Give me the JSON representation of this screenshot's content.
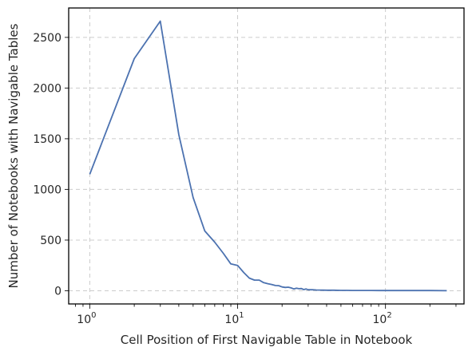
{
  "chart_data": {
    "type": "line",
    "xlabel": "Cell Position of First Navigable Table in Notebook",
    "ylabel": "Number of Notebooks with Navigable Tables",
    "xscale": "log",
    "xlim": [
      0.72,
      340
    ],
    "ylim": [
      -130,
      2790
    ],
    "grid": true,
    "line_color": "#4c72b0",
    "xticks": [
      {
        "value": 1,
        "base": "10",
        "exp": "0"
      },
      {
        "value": 10,
        "base": "10",
        "exp": "1"
      },
      {
        "value": 100,
        "base": "10",
        "exp": "2"
      }
    ],
    "yticks": [
      0,
      500,
      1000,
      1500,
      2000,
      2500
    ],
    "series": [
      {
        "x": [
          1,
          2,
          3,
          4,
          5,
          6,
          7,
          8,
          9,
          10,
          11,
          12,
          13,
          14,
          15,
          16,
          17,
          18,
          19,
          20,
          21,
          22,
          23,
          24,
          25,
          26,
          27,
          28,
          29,
          30,
          32,
          34,
          36,
          38,
          40,
          45,
          50,
          55,
          60,
          70,
          80,
          90,
          100,
          120,
          150,
          200,
          260
        ],
        "y": [
          1150,
          2290,
          2660,
          1540,
          920,
          590,
          480,
          370,
          265,
          250,
          180,
          125,
          105,
          105,
          80,
          70,
          62,
          52,
          50,
          38,
          33,
          35,
          28,
          18,
          25,
          20,
          22,
          12,
          18,
          10,
          10,
          8,
          7,
          6,
          5,
          5,
          4,
          4,
          3,
          3,
          3,
          2,
          2,
          2,
          2,
          2,
          1
        ]
      }
    ]
  }
}
